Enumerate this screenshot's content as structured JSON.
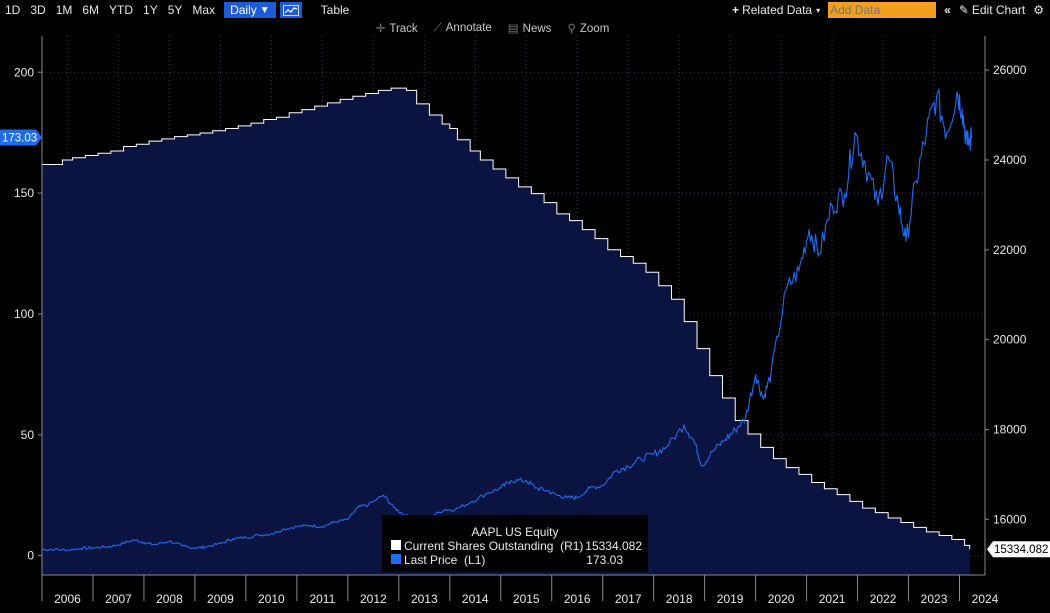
{
  "toolbar": {
    "ranges": [
      "1D",
      "3D",
      "1M",
      "6M",
      "YTD",
      "1Y",
      "5Y",
      "Max"
    ],
    "frequency": "Daily",
    "chart_type_icon": "line-chart-icon",
    "table_label": "Table",
    "related_data_label": "Related Data",
    "add_data_placeholder": "Add Data",
    "edit_chart_label": "Edit Chart"
  },
  "subtools": {
    "track": "Track",
    "annotate": "Annotate",
    "news": "News",
    "zoom": "Zoom"
  },
  "legend": {
    "title": "AAPL US Equity",
    "rows": [
      {
        "label": "Current Shares Outstanding  (R1)",
        "value": "15334.082",
        "color": "#ffffff"
      },
      {
        "label": "Last Price  (L1)",
        "value": "173.03",
        "color": "#1e6cf0"
      }
    ]
  },
  "chart_data": {
    "type": "line",
    "xlabel": "",
    "x_ticks": [
      "2006",
      "2007",
      "2008",
      "2009",
      "2010",
      "2011",
      "2012",
      "2013",
      "2014",
      "2015",
      "2016",
      "2017",
      "2018",
      "2019",
      "2020",
      "2021",
      "2022",
      "2023",
      "2024"
    ],
    "y_left": {
      "ticks": [
        0,
        50,
        100,
        150,
        200
      ],
      "range": [
        -8,
        215
      ],
      "current_label": "173.03"
    },
    "y_right": {
      "ticks": [
        16000,
        18000,
        20000,
        22000,
        24000,
        26000
      ],
      "range": [
        14760,
        26760
      ],
      "current_label": "15334.082"
    },
    "colors": {
      "background": "#000000",
      "area_fill": "#0b1440",
      "shares": "#ffffff",
      "price": "#1e6cf0"
    },
    "series": [
      {
        "name": "Current Shares Outstanding",
        "axis": "right",
        "step": true,
        "points": [
          [
            "2006.00",
            23900
          ],
          [
            "2006.40",
            24000
          ],
          [
            "2006.60",
            24050
          ],
          [
            "2006.85",
            24100
          ],
          [
            "2007.10",
            24150
          ],
          [
            "2007.35",
            24200
          ],
          [
            "2007.60",
            24300
          ],
          [
            "2007.85",
            24350
          ],
          [
            "2008.10",
            24420
          ],
          [
            "2008.35",
            24470
          ],
          [
            "2008.60",
            24520
          ],
          [
            "2008.85",
            24560
          ],
          [
            "2009.10",
            24600
          ],
          [
            "2009.35",
            24650
          ],
          [
            "2009.60",
            24700
          ],
          [
            "2009.85",
            24760
          ],
          [
            "2010.10",
            24820
          ],
          [
            "2010.35",
            24900
          ],
          [
            "2010.60",
            24950
          ],
          [
            "2010.85",
            25050
          ],
          [
            "2011.10",
            25120
          ],
          [
            "2011.35",
            25200
          ],
          [
            "2011.60",
            25270
          ],
          [
            "2011.85",
            25350
          ],
          [
            "2012.10",
            25420
          ],
          [
            "2012.35",
            25480
          ],
          [
            "2012.60",
            25550
          ],
          [
            "2012.85",
            25600
          ],
          [
            "2013.15",
            25550
          ],
          [
            "2013.35",
            25250
          ],
          [
            "2013.60",
            25000
          ],
          [
            "2013.85",
            24800
          ],
          [
            "2014.00",
            24700
          ],
          [
            "2014.15",
            24450
          ],
          [
            "2014.40",
            24200
          ],
          [
            "2014.60",
            24000
          ],
          [
            "2014.85",
            23800
          ],
          [
            "2015.10",
            23600
          ],
          [
            "2015.35",
            23400
          ],
          [
            "2015.60",
            23250
          ],
          [
            "2015.85",
            23050
          ],
          [
            "2016.10",
            22800
          ],
          [
            "2016.35",
            22650
          ],
          [
            "2016.60",
            22450
          ],
          [
            "2016.85",
            22250
          ],
          [
            "2017.10",
            22000
          ],
          [
            "2017.35",
            21850
          ],
          [
            "2017.60",
            21700
          ],
          [
            "2017.85",
            21500
          ],
          [
            "2018.10",
            21200
          ],
          [
            "2018.35",
            20900
          ],
          [
            "2018.60",
            20400
          ],
          [
            "2018.85",
            19800
          ],
          [
            "2019.10",
            19200
          ],
          [
            "2019.35",
            18700
          ],
          [
            "2019.60",
            18200
          ],
          [
            "2019.85",
            17900
          ],
          [
            "2020.10",
            17600
          ],
          [
            "2020.35",
            17350
          ],
          [
            "2020.60",
            17150
          ],
          [
            "2020.85",
            17000
          ],
          [
            "2021.10",
            16820
          ],
          [
            "2021.35",
            16680
          ],
          [
            "2021.60",
            16550
          ],
          [
            "2021.85",
            16400
          ],
          [
            "2022.10",
            16250
          ],
          [
            "2022.35",
            16150
          ],
          [
            "2022.60",
            16030
          ],
          [
            "2022.85",
            15930
          ],
          [
            "2023.10",
            15820
          ],
          [
            "2023.35",
            15720
          ],
          [
            "2023.60",
            15640
          ],
          [
            "2023.85",
            15550
          ],
          [
            "2024.10",
            15420
          ],
          [
            "2024.20",
            15334
          ]
        ]
      },
      {
        "name": "Last Price",
        "axis": "left",
        "points": [
          [
            "2006.00",
            2.5
          ],
          [
            "2006.25",
            2.6
          ],
          [
            "2006.50",
            2.3
          ],
          [
            "2006.75",
            3.0
          ],
          [
            "2007.00",
            3.2
          ],
          [
            "2007.25",
            3.6
          ],
          [
            "2007.50",
            4.5
          ],
          [
            "2007.80",
            6.5
          ],
          [
            "2008.00",
            5.5
          ],
          [
            "2008.20",
            4.5
          ],
          [
            "2008.50",
            6.0
          ],
          [
            "2008.75",
            4.0
          ],
          [
            "2009.00",
            3.2
          ],
          [
            "2009.20",
            3.6
          ],
          [
            "2009.50",
            5.0
          ],
          [
            "2009.75",
            7.0
          ],
          [
            "2010.00",
            7.5
          ],
          [
            "2010.25",
            8.5
          ],
          [
            "2010.50",
            9.0
          ],
          [
            "2010.75",
            11.0
          ],
          [
            "2011.00",
            12.0
          ],
          [
            "2011.25",
            12.5
          ],
          [
            "2011.50",
            12.0
          ],
          [
            "2011.75",
            14.0
          ],
          [
            "2012.00",
            15.0
          ],
          [
            "2012.20",
            20.0
          ],
          [
            "2012.40",
            21.0
          ],
          [
            "2012.70",
            25.0
          ],
          [
            "2012.90",
            20.0
          ],
          [
            "2013.10",
            17.0
          ],
          [
            "2013.30",
            15.0
          ],
          [
            "2013.60",
            16.0
          ],
          [
            "2013.90",
            19.0
          ],
          [
            "2014.10",
            19.0
          ],
          [
            "2014.40",
            22.0
          ],
          [
            "2014.75",
            26.0
          ],
          [
            "2015.00",
            28.0
          ],
          [
            "2015.20",
            31.0
          ],
          [
            "2015.50",
            31.0
          ],
          [
            "2015.70",
            28.0
          ],
          [
            "2015.90",
            27.0
          ],
          [
            "2016.10",
            25.0
          ],
          [
            "2016.30",
            24.0
          ],
          [
            "2016.50",
            24.0
          ],
          [
            "2016.75",
            28.0
          ],
          [
            "2017.00",
            29.0
          ],
          [
            "2017.25",
            35.0
          ],
          [
            "2017.50",
            37.0
          ],
          [
            "2017.75",
            40.0
          ],
          [
            "2018.00",
            42.0
          ],
          [
            "2018.25",
            45.0
          ],
          [
            "2018.60",
            54.0
          ],
          [
            "2018.80",
            47.0
          ],
          [
            "2018.95",
            37.0
          ],
          [
            "2019.15",
            43.0
          ],
          [
            "2019.40",
            48.0
          ],
          [
            "2019.60",
            52.0
          ],
          [
            "2019.80",
            57.0
          ],
          [
            "2020.00",
            75.0
          ],
          [
            "2020.15",
            65.0
          ],
          [
            "2020.30",
            75.0
          ],
          [
            "2020.60",
            110.0
          ],
          [
            "2020.85",
            118.0
          ],
          [
            "2021.05",
            135.0
          ],
          [
            "2021.25",
            125.0
          ],
          [
            "2021.50",
            145.0
          ],
          [
            "2021.75",
            150.0
          ],
          [
            "2021.95",
            175.0
          ],
          [
            "2022.15",
            162.0
          ],
          [
            "2022.40",
            145.0
          ],
          [
            "2022.60",
            165.0
          ],
          [
            "2022.80",
            145.0
          ],
          [
            "2022.95",
            130.0
          ],
          [
            "2023.15",
            155.0
          ],
          [
            "2023.35",
            175.0
          ],
          [
            "2023.55",
            190.0
          ],
          [
            "2023.75",
            175.0
          ],
          [
            "2023.95",
            192.0
          ],
          [
            "2024.05",
            185.0
          ],
          [
            "2024.15",
            170.0
          ],
          [
            "2024.25",
            173.03
          ]
        ]
      }
    ]
  }
}
